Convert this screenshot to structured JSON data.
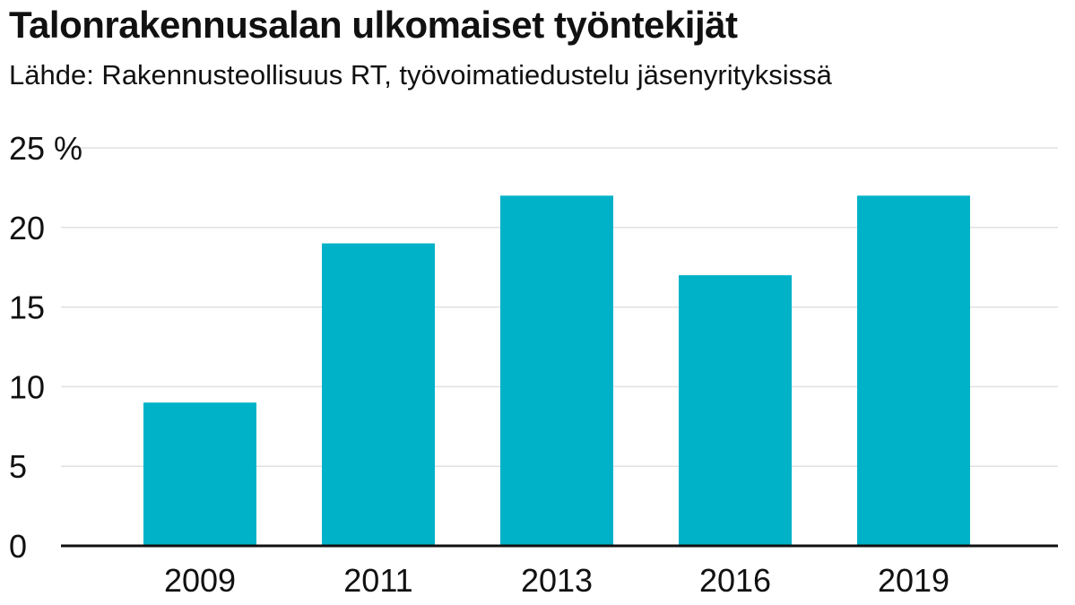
{
  "title": "Talonrakennusalan ulkomaiset työntekijät",
  "subtitle": "Lähde: Rakennusteollisuus RT, työvoimatiedustelu jäsenyrityksissä",
  "colors": {
    "bar": "#00b2c8",
    "grid": "#e0e0e0",
    "axis": "#111111"
  },
  "chart_data": {
    "type": "bar",
    "categories": [
      "2009",
      "2011",
      "2013",
      "2016",
      "2019"
    ],
    "values": [
      9,
      19,
      22,
      17,
      22
    ],
    "ylim": [
      0,
      25
    ],
    "yticks": [
      0,
      5,
      10,
      15,
      20,
      25
    ],
    "ytick_labels": [
      "0",
      "5",
      "10",
      "15",
      "20",
      "25 %"
    ],
    "grid": true,
    "legend": "none"
  }
}
